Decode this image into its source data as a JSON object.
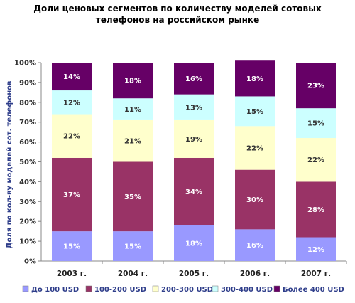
{
  "chart_data": {
    "type": "bar",
    "stacked": true,
    "percent": true,
    "title": "Доли ценовых сегментов по количеству моделей сотовых телефонов на российском рынке",
    "ylabel": "Доля по кол-ву моделей сот. телефонов",
    "xlabel": "",
    "ylim": [
      0,
      100
    ],
    "yticks": [
      "0%",
      "10%",
      "20%",
      "30%",
      "40%",
      "50%",
      "60%",
      "70%",
      "80%",
      "90%",
      "100%"
    ],
    "categories": [
      "2003 г.",
      "2004 г.",
      "2005 г.",
      "2006 г.",
      "2007 г."
    ],
    "series": [
      {
        "name": "До 100 USD",
        "color": "#9999ff",
        "label_color": "#ffffff",
        "values": [
          15,
          15,
          18,
          16,
          12
        ],
        "labels": [
          "15%",
          "15%",
          "18%",
          "16%",
          "12%"
        ]
      },
      {
        "name": "100-200 USD",
        "color": "#993366",
        "label_color": "#ffffff",
        "values": [
          37,
          35,
          34,
          30,
          28
        ],
        "labels": [
          "37%",
          "35%",
          "34%",
          "30%",
          "28%"
        ]
      },
      {
        "name": "200-300 USD",
        "color": "#ffffcc",
        "label_color": "#333333",
        "values": [
          22,
          21,
          19,
          22,
          22
        ],
        "labels": [
          "22%",
          "21%",
          "19%",
          "22%",
          "22%"
        ]
      },
      {
        "name": "300-400 USD",
        "color": "#ccffff",
        "label_color": "#333333",
        "values": [
          12,
          11,
          13,
          15,
          15
        ],
        "labels": [
          "12%",
          "11%",
          "13%",
          "15%",
          "15%"
        ]
      },
      {
        "name": "Более 400 USD",
        "color": "#660066",
        "label_color": "#ffffff",
        "values": [
          14,
          18,
          16,
          18,
          23
        ],
        "labels": [
          "14%",
          "18%",
          "16%",
          "18%",
          "23%"
        ]
      }
    ],
    "grid": false,
    "legend": "bottom"
  }
}
